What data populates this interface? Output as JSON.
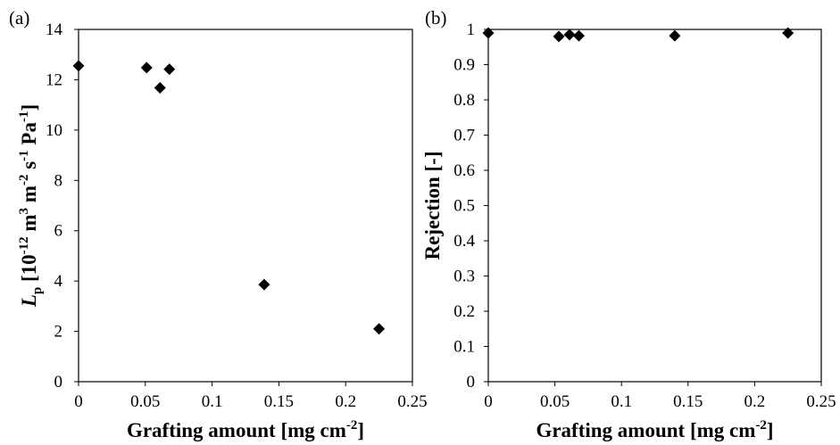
{
  "chart_data": [
    {
      "type": "scatter",
      "panel_label": "(a)",
      "xlabel": "Grafting amount [mg cm",
      "xlabel_sup": "-2",
      "xlabel_end": "]",
      "ylabel_parts": [
        {
          "text": "L",
          "style": "italic"
        },
        {
          "text": "p",
          "style": "sub"
        },
        {
          "text": " [10",
          "style": "normal"
        },
        {
          "text": "-12",
          "style": "sup"
        },
        {
          "text": " m",
          "style": "normal"
        },
        {
          "text": "3",
          "style": "sup"
        },
        {
          "text": " m",
          "style": "normal"
        },
        {
          "text": "-2",
          "style": "sup"
        },
        {
          "text": " s",
          "style": "normal"
        },
        {
          "text": "-1",
          "style": "sup"
        },
        {
          "text": "  Pa",
          "style": "normal"
        },
        {
          "text": "-1",
          "style": "sup"
        },
        {
          "text": "]",
          "style": "normal"
        }
      ],
      "xlim": [
        0,
        0.25
      ],
      "ylim": [
        0,
        14
      ],
      "xticks": [
        0,
        0.05,
        0.1,
        0.15,
        0.2,
        0.25
      ],
      "xtick_labels": [
        "0",
        "0.05",
        "0.1",
        "0.15",
        "0.2",
        "0.25"
      ],
      "yticks": [
        0,
        2,
        4,
        6,
        8,
        10,
        12,
        14
      ],
      "ytick_labels": [
        "0",
        "2",
        "4",
        "6",
        "8",
        "10",
        "12",
        "14"
      ],
      "grid": false,
      "marker": "diamond",
      "marker_color": "#000000",
      "points": [
        {
          "x": 0.0,
          "y": 12.55
        },
        {
          "x": 0.051,
          "y": 12.48
        },
        {
          "x": 0.061,
          "y": 11.68
        },
        {
          "x": 0.068,
          "y": 12.42
        },
        {
          "x": 0.139,
          "y": 3.86
        },
        {
          "x": 0.225,
          "y": 2.1
        }
      ]
    },
    {
      "type": "scatter",
      "panel_label": "(b)",
      "xlabel": "Grafting amount [mg cm",
      "xlabel_sup": "-2",
      "xlabel_end": "]",
      "ylabel_parts": [
        {
          "text": "Rejection [-]",
          "style": "normal"
        }
      ],
      "xlim": [
        0,
        0.25
      ],
      "ylim": [
        0,
        1
      ],
      "xticks": [
        0,
        0.05,
        0.1,
        0.15,
        0.2,
        0.25
      ],
      "xtick_labels": [
        "0",
        "0.05",
        "0.1",
        "0.15",
        "0.2",
        "0.25"
      ],
      "yticks": [
        0,
        0.1,
        0.2,
        0.3,
        0.4,
        0.5,
        0.6,
        0.7,
        0.8,
        0.9,
        1
      ],
      "ytick_labels": [
        "0",
        "0.1",
        "0.2",
        "0.3",
        "0.4",
        "0.5",
        "0.6",
        "0.7",
        "0.8",
        "0.9",
        "1"
      ],
      "grid": false,
      "marker": "diamond",
      "marker_color": "#000000",
      "points": [
        {
          "x": 0.0,
          "y": 0.99
        },
        {
          "x": 0.053,
          "y": 0.98
        },
        {
          "x": 0.061,
          "y": 0.985
        },
        {
          "x": 0.068,
          "y": 0.982
        },
        {
          "x": 0.14,
          "y": 0.982
        },
        {
          "x": 0.225,
          "y": 0.99
        }
      ]
    }
  ]
}
